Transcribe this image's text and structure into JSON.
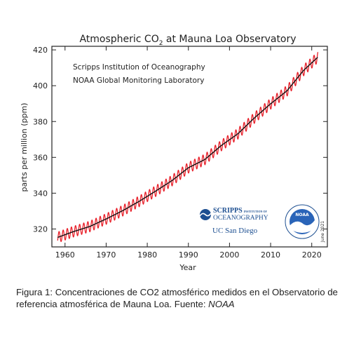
{
  "caption": {
    "text": "Figura 1: Concentraciones de CO2 atmosférico medidos en el Observatorio de referencia atmosférica de Mauna Loa. Fuente: ",
    "source": "NOAA"
  },
  "logos": {
    "scripps_line1": "SCRIPPS",
    "scripps_line1_small": "INSTITUTION OF",
    "scripps_line2": "OCEANOGRAPHY",
    "ucsd": "UC San Diego",
    "noaa": "NOAA"
  },
  "date_stamp": "June 2021",
  "chart_data": {
    "type": "line",
    "title_main": "Atmospheric CO",
    "title_sub": "2",
    "title_rest": " at Mauna Loa Observatory",
    "annotations": [
      "Scripps Institution of Oceanography",
      "NOAA Global Monitoring Laboratory"
    ],
    "xlabel": "Year",
    "ylabel": "parts per million (ppm)",
    "xlim": [
      1956.8,
      2023.8
    ],
    "ylim": [
      310,
      422
    ],
    "xticks": [
      1960,
      1970,
      1980,
      1990,
      2000,
      2010,
      2020
    ],
    "yticks": [
      320,
      340,
      360,
      380,
      400,
      420
    ],
    "grid": false,
    "series": [
      {
        "color": "#e8202a",
        "seasonal_amplitude": 3.0,
        "x": [
          1958.2,
          1962,
          1966,
          1970,
          1974,
          1978,
          1982,
          1986,
          1990,
          1994,
          1998,
          2002,
          2006,
          2010,
          2014,
          2018,
          2021.5
        ],
        "values": [
          315.3,
          318.5,
          321.4,
          325.6,
          330.2,
          335.4,
          341.1,
          347.0,
          354.2,
          358.8,
          366.6,
          373.1,
          381.9,
          389.9,
          397.2,
          408.5,
          416.0
        ]
      },
      {
        "color": "#111111",
        "x": [
          1958.2,
          1962,
          1966,
          1970,
          1974,
          1978,
          1982,
          1986,
          1990,
          1994,
          1998,
          2002,
          2006,
          2010,
          2014,
          2018,
          2021.5
        ],
        "values": [
          315.3,
          318.5,
          321.4,
          325.6,
          330.2,
          335.4,
          341.1,
          347.0,
          354.2,
          358.8,
          366.6,
          373.1,
          381.9,
          389.9,
          397.2,
          408.5,
          416.0
        ]
      }
    ]
  }
}
